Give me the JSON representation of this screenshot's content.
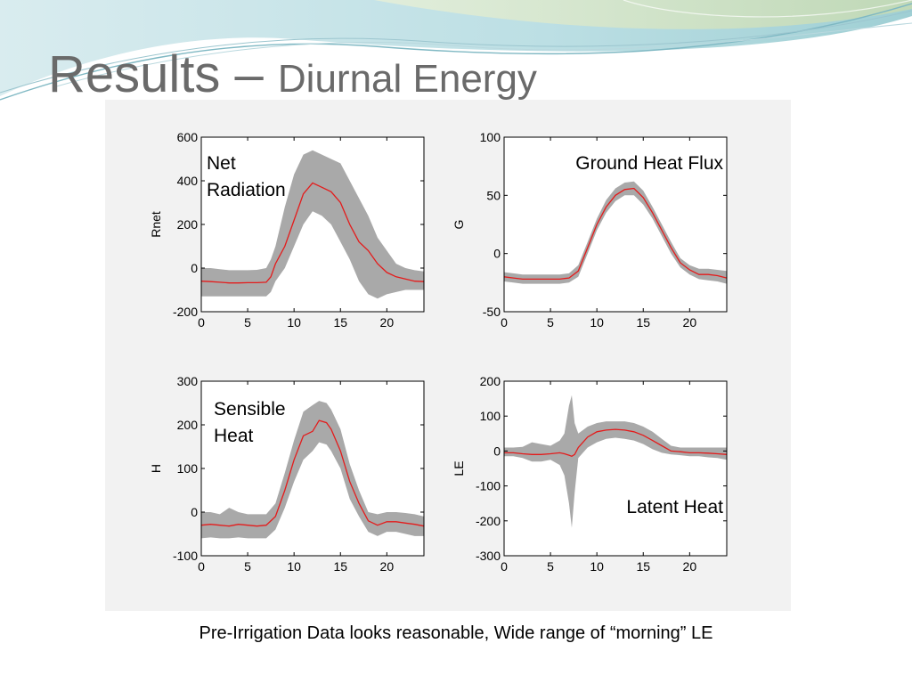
{
  "title": {
    "main": "Results",
    "dash": " – ",
    "sub": "Diurnal Energy"
  },
  "footnote": "Pre-Irrigation Data looks reasonable, Wide range of “morning” LE",
  "colors": {
    "band": "#a9a9a9",
    "mean": "#e41b1b",
    "title": "#6a6a6a"
  },
  "chart_data": [
    {
      "type": "line",
      "annotation": [
        "Net",
        "Radiation"
      ],
      "xlabel": "",
      "ylabel": "Rnet",
      "xlim": [
        0,
        24
      ],
      "ylim": [
        -200,
        600
      ],
      "xticks": [
        0,
        5,
        10,
        15,
        20
      ],
      "yticks": [
        -200,
        0,
        200,
        400,
        600
      ],
      "grid": false,
      "x": [
        0,
        1,
        2,
        3,
        4,
        5,
        6,
        7,
        7.5,
        8,
        9,
        10,
        11,
        12,
        13,
        14,
        15,
        16,
        17,
        18,
        19,
        20,
        21,
        22,
        23,
        24
      ],
      "mean": [
        -60,
        -62,
        -65,
        -68,
        -68,
        -67,
        -67,
        -65,
        -40,
        20,
        100,
        220,
        340,
        390,
        370,
        350,
        300,
        200,
        120,
        80,
        20,
        -20,
        -40,
        -50,
        -60,
        -62
      ],
      "upper": [
        0,
        0,
        -5,
        -10,
        -10,
        -10,
        -8,
        0,
        40,
        100,
        280,
        430,
        520,
        540,
        520,
        500,
        480,
        400,
        320,
        240,
        140,
        80,
        20,
        0,
        -10,
        -15
      ],
      "lower": [
        -130,
        -130,
        -130,
        -130,
        -130,
        -130,
        -130,
        -130,
        -110,
        -60,
        0,
        100,
        200,
        260,
        240,
        200,
        120,
        40,
        -60,
        -120,
        -140,
        -120,
        -110,
        -100,
        -100,
        -100
      ]
    },
    {
      "type": "line",
      "annotation": [
        "Ground Heat Flux"
      ],
      "xlabel": "",
      "ylabel": "G",
      "xlim": [
        0,
        24
      ],
      "ylim": [
        -50,
        100
      ],
      "xticks": [
        0,
        5,
        10,
        15,
        20
      ],
      "yticks": [
        -50,
        0,
        50,
        100
      ],
      "grid": false,
      "x": [
        0,
        1,
        2,
        3,
        4,
        5,
        6,
        7,
        8,
        9,
        10,
        11,
        12,
        13,
        14,
        15,
        16,
        17,
        18,
        19,
        20,
        21,
        22,
        23,
        24
      ],
      "mean": [
        -20,
        -21,
        -22,
        -22,
        -22,
        -22,
        -22,
        -21,
        -15,
        5,
        25,
        40,
        50,
        55,
        56,
        48,
        35,
        20,
        5,
        -8,
        -14,
        -18,
        -18,
        -19,
        -21
      ],
      "upper": [
        -16,
        -17,
        -18,
        -18,
        -18,
        -18,
        -18,
        -17,
        -10,
        10,
        30,
        46,
        56,
        61,
        62,
        54,
        40,
        25,
        10,
        -4,
        -10,
        -13,
        -13,
        -14,
        -15
      ],
      "lower": [
        -24,
        -25,
        -26,
        -26,
        -26,
        -26,
        -26,
        -25,
        -20,
        0,
        20,
        35,
        45,
        50,
        50,
        42,
        30,
        15,
        0,
        -12,
        -18,
        -22,
        -23,
        -24,
        -26
      ]
    },
    {
      "type": "line",
      "annotation": [
        "Sensible",
        "Heat"
      ],
      "xlabel": "",
      "ylabel": "H",
      "xlim": [
        0,
        24
      ],
      "ylim": [
        -100,
        300
      ],
      "xticks": [
        0,
        5,
        10,
        15,
        20
      ],
      "yticks": [
        -100,
        0,
        100,
        200,
        300
      ],
      "grid": false,
      "x": [
        0,
        1,
        2,
        3,
        4,
        5,
        6,
        7,
        8,
        9,
        10,
        11,
        12,
        12.7,
        13.5,
        14,
        15,
        16,
        17,
        18,
        19,
        20,
        21,
        22,
        23,
        24
      ],
      "mean": [
        -30,
        -28,
        -30,
        -32,
        -28,
        -30,
        -32,
        -30,
        -10,
        50,
        120,
        175,
        185,
        210,
        205,
        190,
        140,
        70,
        20,
        -20,
        -30,
        -22,
        -22,
        -25,
        -28,
        -32
      ],
      "upper": [
        0,
        0,
        -5,
        10,
        0,
        -5,
        -5,
        -5,
        20,
        90,
        165,
        230,
        245,
        255,
        250,
        235,
        190,
        110,
        50,
        0,
        -5,
        0,
        0,
        -2,
        -5,
        -10
      ],
      "lower": [
        -60,
        -58,
        -60,
        -60,
        -58,
        -60,
        -60,
        -60,
        -40,
        10,
        70,
        120,
        140,
        160,
        155,
        140,
        100,
        30,
        -10,
        -45,
        -55,
        -45,
        -45,
        -50,
        -55,
        -55
      ]
    },
    {
      "type": "line",
      "annotation": [
        "Latent Heat"
      ],
      "xlabel": "",
      "ylabel": "LE",
      "xlim": [
        0,
        24
      ],
      "ylim": [
        -300,
        200
      ],
      "xticks": [
        0,
        5,
        10,
        15,
        20
      ],
      "yticks": [
        -300,
        -200,
        -100,
        0,
        100,
        200
      ],
      "grid": false,
      "x": [
        0,
        1,
        2,
        3,
        4,
        5,
        6,
        6.5,
        7,
        7.3,
        7.6,
        8,
        9,
        10,
        11,
        12,
        13,
        14,
        15,
        16,
        17,
        18,
        19,
        20,
        21,
        22,
        23,
        24
      ],
      "mean": [
        -5,
        -5,
        -8,
        -10,
        -10,
        -8,
        -5,
        -8,
        -12,
        -15,
        -10,
        10,
        40,
        55,
        60,
        62,
        60,
        55,
        45,
        30,
        15,
        0,
        -2,
        -5,
        -5,
        -6,
        -8,
        -10
      ],
      "upper": [
        10,
        10,
        12,
        25,
        20,
        15,
        30,
        50,
        130,
        160,
        80,
        50,
        70,
        80,
        85,
        85,
        85,
        80,
        70,
        55,
        35,
        15,
        10,
        10,
        10,
        10,
        10,
        10
      ],
      "lower": [
        -15,
        -15,
        -20,
        -30,
        -30,
        -25,
        -40,
        -70,
        -150,
        -220,
        -120,
        -20,
        10,
        25,
        35,
        38,
        35,
        30,
        20,
        5,
        -5,
        -10,
        -12,
        -15,
        -15,
        -18,
        -20,
        -25
      ]
    }
  ]
}
